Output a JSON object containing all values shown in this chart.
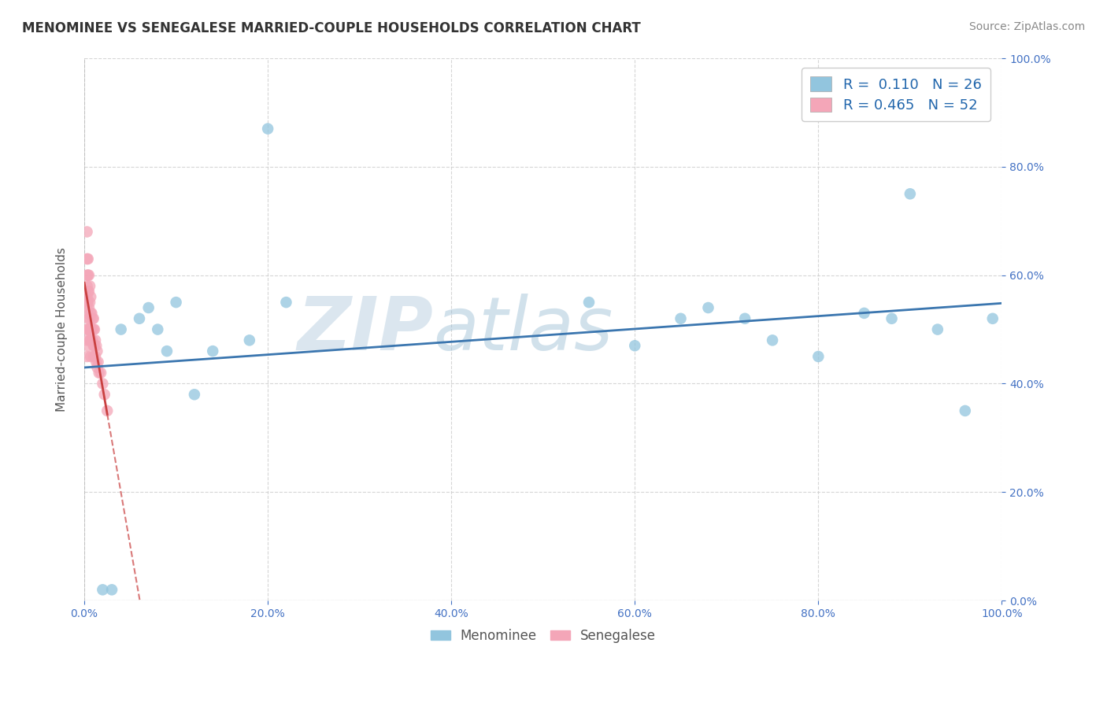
{
  "title": "MENOMINEE VS SENEGALESE MARRIED-COUPLE HOUSEHOLDS CORRELATION CHART",
  "source": "Source: ZipAtlas.com",
  "ylabel_label": "Married-couple Households",
  "watermark_part1": "ZIP",
  "watermark_part2": "atlas",
  "menominee_R": 0.11,
  "menominee_N": 26,
  "senegalese_R": 0.465,
  "senegalese_N": 52,
  "xlim": [
    0.0,
    1.0
  ],
  "ylim": [
    0.0,
    1.0
  ],
  "menominee_color": "#92c5de",
  "senegalese_color": "#f4a6b8",
  "trendline_menominee_color": "#3b76af",
  "trendline_senegalese_color": "#c94040",
  "menominee_x": [
    0.02,
    0.03,
    0.04,
    0.06,
    0.07,
    0.08,
    0.09,
    0.1,
    0.12,
    0.14,
    0.18,
    0.2,
    0.22,
    0.55,
    0.6,
    0.65,
    0.68,
    0.72,
    0.75,
    0.8,
    0.85,
    0.88,
    0.9,
    0.93,
    0.96,
    0.99
  ],
  "menominee_y": [
    0.02,
    0.02,
    0.5,
    0.52,
    0.54,
    0.5,
    0.46,
    0.55,
    0.38,
    0.46,
    0.48,
    0.87,
    0.55,
    0.55,
    0.47,
    0.52,
    0.54,
    0.52,
    0.48,
    0.45,
    0.53,
    0.52,
    0.75,
    0.5,
    0.35,
    0.52
  ],
  "senegalese_x": [
    0.003,
    0.003,
    0.003,
    0.003,
    0.003,
    0.003,
    0.003,
    0.003,
    0.003,
    0.003,
    0.004,
    0.004,
    0.004,
    0.004,
    0.004,
    0.004,
    0.004,
    0.005,
    0.005,
    0.005,
    0.005,
    0.006,
    0.006,
    0.006,
    0.006,
    0.007,
    0.007,
    0.007,
    0.007,
    0.007,
    0.008,
    0.008,
    0.009,
    0.009,
    0.01,
    0.01,
    0.01,
    0.01,
    0.011,
    0.011,
    0.012,
    0.012,
    0.013,
    0.013,
    0.014,
    0.014,
    0.015,
    0.016,
    0.018,
    0.02,
    0.022,
    0.025
  ],
  "senegalese_y": [
    0.68,
    0.63,
    0.6,
    0.58,
    0.56,
    0.55,
    0.53,
    0.5,
    0.48,
    0.45,
    0.63,
    0.6,
    0.57,
    0.55,
    0.52,
    0.5,
    0.47,
    0.6,
    0.57,
    0.54,
    0.5,
    0.58,
    0.55,
    0.52,
    0.48,
    0.56,
    0.53,
    0.5,
    0.48,
    0.45,
    0.53,
    0.5,
    0.52,
    0.48,
    0.52,
    0.5,
    0.47,
    0.45,
    0.5,
    0.47,
    0.48,
    0.45,
    0.47,
    0.44,
    0.46,
    0.43,
    0.44,
    0.42,
    0.42,
    0.4,
    0.38,
    0.35
  ],
  "grid_color": "#cccccc",
  "background_color": "#ffffff",
  "title_fontsize": 12,
  "axis_label_fontsize": 11,
  "tick_fontsize": 10,
  "legend_fontsize": 13,
  "source_fontsize": 10,
  "right_tick_color": "#4472c4",
  "bottom_tick_color": "#4472c4"
}
